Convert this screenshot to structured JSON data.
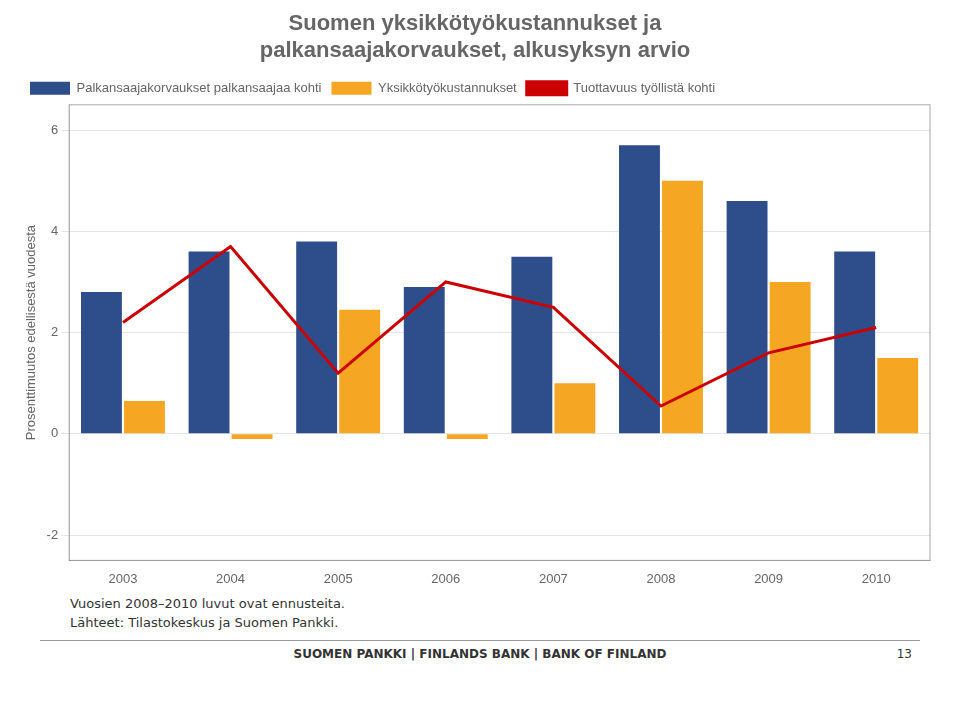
{
  "chart_data": {
    "type": "bar",
    "title": [
      "Suomen yksikkötyökustannukset ja",
      "palkansaajakorvaukset, alkusyksyn arvio"
    ],
    "categories": [
      "2003",
      "2004",
      "2005",
      "2006",
      "2007",
      "2008",
      "2009",
      "2010"
    ],
    "series": [
      {
        "name": "Palkansaajakorvaukset palkansaajaa kohti",
        "type": "bar",
        "color": "#2E4D8B",
        "values": [
          2.8,
          3.6,
          3.8,
          2.9,
          3.5,
          5.7,
          4.6,
          3.6
        ]
      },
      {
        "name": "Yksikkötyökustannukset",
        "type": "bar",
        "color": "#F5A623",
        "values": [
          0.65,
          -0.1,
          2.45,
          -0.1,
          1.0,
          5.0,
          3.0,
          1.5
        ]
      },
      {
        "name": "Tuottavuus työllistä kohti",
        "type": "line",
        "color": "#CC0000",
        "values": [
          2.2,
          3.7,
          1.2,
          3.0,
          2.5,
          0.55,
          1.6,
          2.1
        ]
      }
    ],
    "y_label": "Prosenttimuutos edellisestä vuodesta",
    "ylim": [
      -2.5,
      6.5
    ],
    "yticks": [
      -2,
      0,
      2,
      4,
      6
    ],
    "grid": true,
    "legend": "top",
    "annotations": [
      "Vuosien 2008–2010 luvut ovat ennusteita.",
      "Lähteet: Tilastokeskus ja Suomen Pankki."
    ],
    "footer": [
      "SUOMEN PANKKI | FINLANDS BANK | BANK OF FINLAND",
      "13"
    ]
  }
}
